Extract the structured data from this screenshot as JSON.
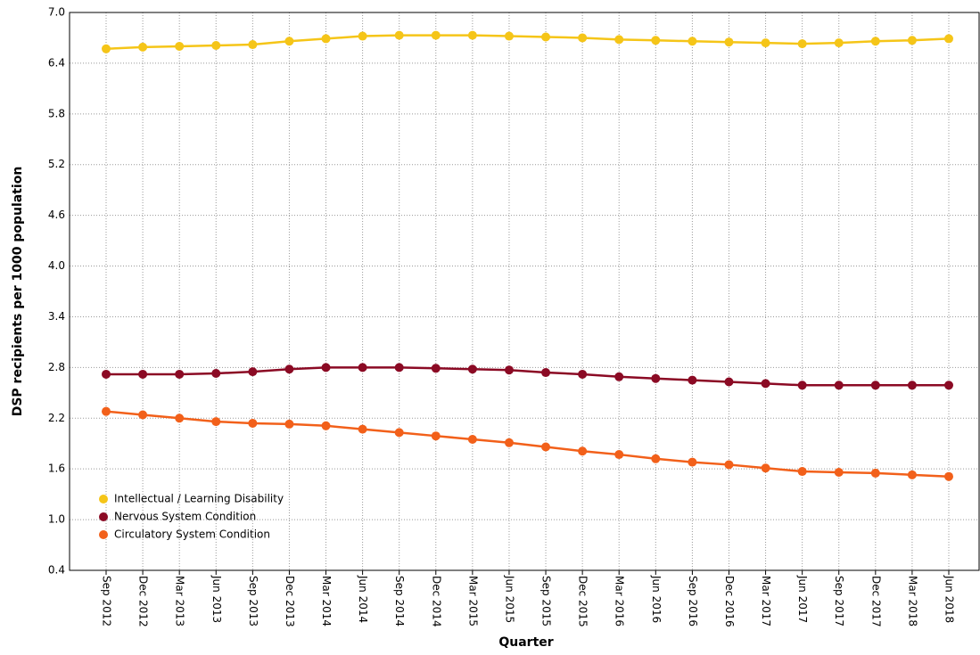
{
  "chart_data": {
    "type": "line",
    "x_label": "Quarter",
    "y_label": "DSP recipients per 1000 population",
    "categories": [
      "Sep 2012",
      "Dec 2012",
      "Mar 2013",
      "Jun 2013",
      "Sep 2013",
      "Dec 2013",
      "Mar 2014",
      "Jun 2014",
      "Sep 2014",
      "Dec 2014",
      "Mar 2015",
      "Jun 2015",
      "Sep 2015",
      "Dec 2015",
      "Mar 2016",
      "Jun 2016",
      "Sep 2016",
      "Dec 2016",
      "Mar 2017",
      "Jun 2017",
      "Sep 2017",
      "Dec 2017",
      "Mar 2018",
      "Jun 2018"
    ],
    "series": [
      {
        "name": "Intellectual / Learning Disability",
        "color": "#f5c518",
        "values": [
          6.57,
          6.59,
          6.6,
          6.61,
          6.62,
          6.66,
          6.69,
          6.72,
          6.73,
          6.73,
          6.73,
          6.72,
          6.71,
          6.7,
          6.68,
          6.67,
          6.66,
          6.65,
          6.64,
          6.63,
          6.64,
          6.66,
          6.67,
          6.69
        ]
      },
      {
        "name": "Nervous System Condition",
        "color": "#8b0a24",
        "values": [
          2.72,
          2.72,
          2.72,
          2.73,
          2.75,
          2.78,
          2.8,
          2.8,
          2.8,
          2.79,
          2.78,
          2.77,
          2.74,
          2.72,
          2.69,
          2.67,
          2.65,
          2.63,
          2.61,
          2.59,
          2.59,
          2.59,
          2.59,
          2.59
        ]
      },
      {
        "name": "Circulatory System Condition",
        "color": "#f2601a",
        "values": [
          2.28,
          2.24,
          2.2,
          2.16,
          2.14,
          2.13,
          2.11,
          2.07,
          2.03,
          1.99,
          1.95,
          1.91,
          1.86,
          1.81,
          1.77,
          1.72,
          1.68,
          1.65,
          1.61,
          1.57,
          1.56,
          1.55,
          1.53,
          1.51
        ]
      }
    ],
    "ylim": [
      0.4,
      7.0
    ],
    "yticks": [
      0.4,
      {
        "value": 1,
        "label": "1.0"
      },
      1.6,
      2.2,
      2.8,
      3.4,
      {
        "value": 4,
        "label": "4.0"
      },
      4.6,
      5.2,
      5.8,
      6.4,
      {
        "value": 7,
        "label": "7.0"
      }
    ],
    "grid": true,
    "legend": "bottom-left"
  }
}
